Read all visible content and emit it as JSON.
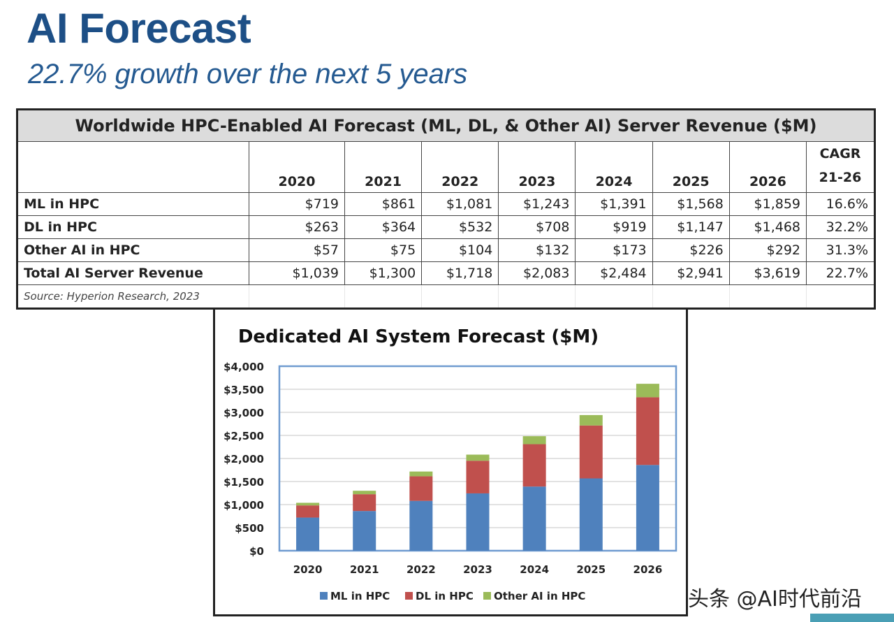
{
  "header": {
    "title": "AI Forecast",
    "subtitle": "22.7% growth over the next 5 years"
  },
  "table": {
    "caption": "Worldwide HPC-Enabled AI Forecast (ML, DL, & Other AI) Server Revenue ($M)",
    "columns": [
      "2020",
      "2021",
      "2022",
      "2023",
      "2024",
      "2025",
      "2026"
    ],
    "cagr_header": [
      "CAGR",
      "21-26"
    ],
    "rows": [
      {
        "label": "ML in HPC",
        "values": [
          "$719",
          "$861",
          "$1,081",
          "$1,243",
          "$1,391",
          "$1,568",
          "$1,859"
        ],
        "cagr": "16.6%"
      },
      {
        "label": "DL in HPC",
        "values": [
          "$263",
          "$364",
          "$532",
          "$708",
          "$919",
          "$1,147",
          "$1,468"
        ],
        "cagr": "32.2%"
      },
      {
        "label": "Other AI in HPC",
        "values": [
          "$57",
          "$75",
          "$104",
          "$132",
          "$173",
          "$226",
          "$292"
        ],
        "cagr": "31.3%"
      },
      {
        "label": "Total AI Server Revenue",
        "values": [
          "$1,039",
          "$1,300",
          "$1,718",
          "$2,083",
          "$2,484",
          "$2,941",
          "$3,619"
        ],
        "cagr": "22.7%"
      }
    ],
    "source": "Source: Hyperion Research, 2023"
  },
  "chart_data": {
    "type": "bar",
    "stacked": true,
    "title": "Dedicated AI System Forecast ($M)",
    "categories": [
      "2020",
      "2021",
      "2022",
      "2023",
      "2024",
      "2025",
      "2026"
    ],
    "series": [
      {
        "name": "ML in HPC",
        "color": "#4f81bd",
        "values": [
          719,
          861,
          1081,
          1243,
          1391,
          1568,
          1859
        ]
      },
      {
        "name": "DL in HPC",
        "color": "#c0504d",
        "values": [
          263,
          364,
          532,
          708,
          919,
          1147,
          1468
        ]
      },
      {
        "name": "Other AI in HPC",
        "color": "#9bbb59",
        "values": [
          57,
          75,
          104,
          132,
          173,
          226,
          292
        ]
      }
    ],
    "ylim": [
      0,
      4000
    ],
    "yticks": [
      "$0",
      "$500",
      "$1,000",
      "$1,500",
      "$2,000",
      "$2,500",
      "$3,000",
      "$3,500",
      "$4,000"
    ],
    "grid": true,
    "legend": "bottom"
  },
  "watermark": "头条 @AI时代前沿"
}
